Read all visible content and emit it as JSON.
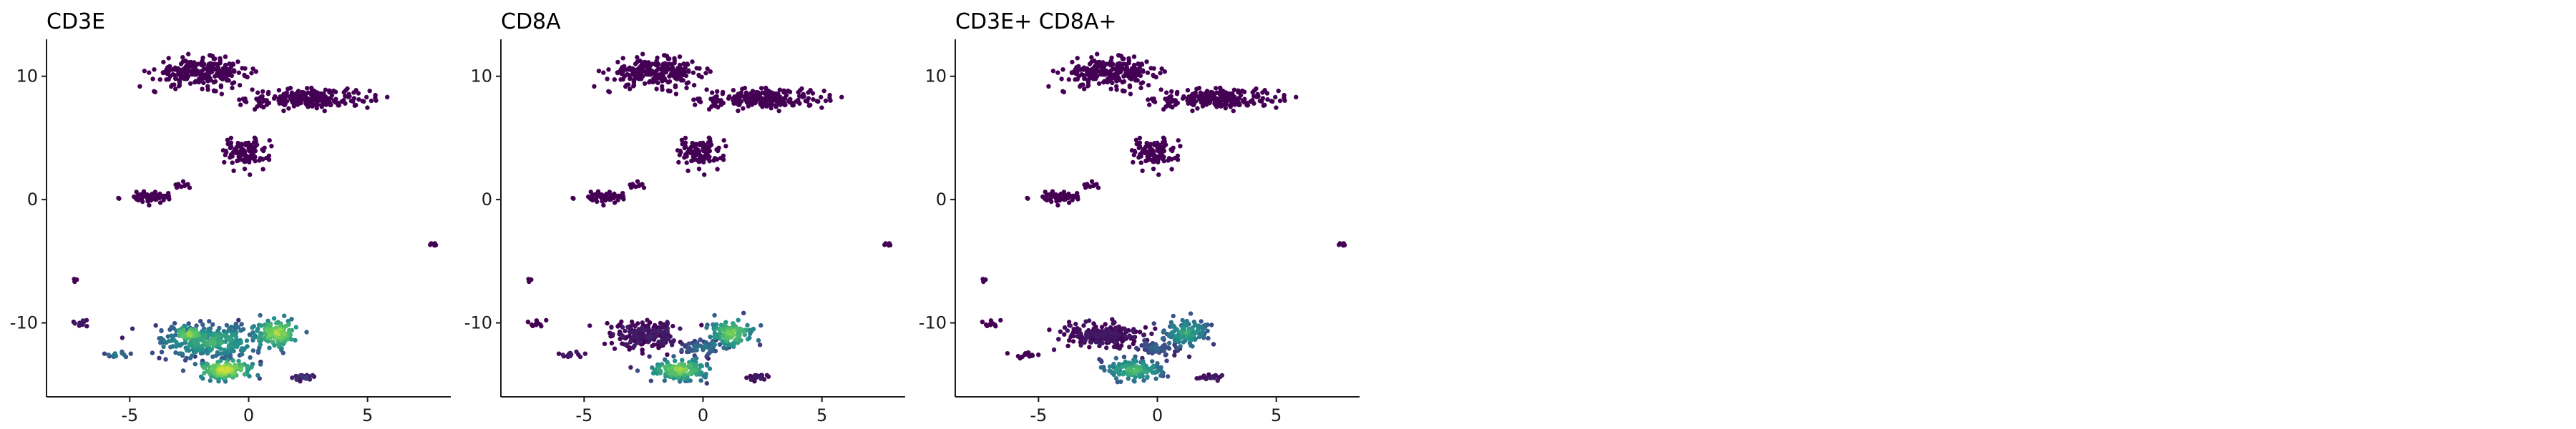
{
  "chart_data": [
    {
      "type": "scatter",
      "title": "CD3E",
      "xlabel": "",
      "ylabel": "",
      "xlim": [
        -8.5,
        8.5
      ],
      "ylim": [
        -16,
        13
      ],
      "xticks": [
        -5,
        0,
        5
      ],
      "yticks": [
        -10,
        0,
        10
      ],
      "grid": false,
      "color_scale": "viridis",
      "clusters": [
        {
          "x": -2.0,
          "y": 10.3,
          "rx": 1.8,
          "ry": 1.0,
          "n": 260,
          "expr": 0.0
        },
        {
          "x": 2.6,
          "y": 8.2,
          "rx": 2.3,
          "ry": 0.7,
          "n": 220,
          "expr": 0.0
        },
        {
          "x": -0.2,
          "y": 3.8,
          "rx": 0.9,
          "ry": 1.1,
          "n": 110,
          "expr": 0.0
        },
        {
          "x": -4.2,
          "y": 0.2,
          "rx": 0.9,
          "ry": 0.4,
          "n": 60,
          "expr": 0.0
        },
        {
          "x": -2.8,
          "y": 1.2,
          "rx": 0.4,
          "ry": 0.3,
          "n": 12,
          "expr": 0.0
        },
        {
          "x": 7.8,
          "y": -3.6,
          "rx": 0.15,
          "ry": 0.2,
          "n": 6,
          "expr": 0.0
        },
        {
          "x": -7.3,
          "y": -6.5,
          "rx": 0.1,
          "ry": 0.2,
          "n": 4,
          "expr": 0.0
        },
        {
          "x": -6.9,
          "y": -10.0,
          "rx": 0.4,
          "ry": 0.3,
          "n": 10,
          "expr": 0.1
        },
        {
          "x": -5.5,
          "y": -12.6,
          "rx": 0.5,
          "ry": 0.25,
          "n": 14,
          "expr": 0.45
        },
        {
          "x": 2.3,
          "y": -14.4,
          "rx": 0.5,
          "ry": 0.3,
          "n": 22,
          "expr": 0.15
        },
        {
          "x": -1.6,
          "y": -11.5,
          "rx": 2.0,
          "ry": 1.2,
          "n": 300,
          "expr": 0.65
        },
        {
          "x": -1.0,
          "y": -13.8,
          "rx": 1.1,
          "ry": 0.8,
          "n": 140,
          "expr": 0.95
        },
        {
          "x": 1.2,
          "y": -10.8,
          "rx": 0.9,
          "ry": 1.1,
          "n": 120,
          "expr": 0.9
        },
        {
          "x": -2.5,
          "y": -10.9,
          "rx": 0.7,
          "ry": 0.6,
          "n": 60,
          "expr": 0.85
        }
      ]
    },
    {
      "type": "scatter",
      "title": "CD8A",
      "xlabel": "",
      "ylabel": "",
      "xlim": [
        -8.5,
        8.5
      ],
      "ylim": [
        -16,
        13
      ],
      "xticks": [
        -5,
        0,
        5
      ],
      "yticks": [
        -10,
        0,
        10
      ],
      "grid": false,
      "color_scale": "viridis",
      "clusters": [
        {
          "x": -2.0,
          "y": 10.3,
          "rx": 1.8,
          "ry": 1.0,
          "n": 260,
          "expr": 0.0
        },
        {
          "x": 2.6,
          "y": 8.2,
          "rx": 2.3,
          "ry": 0.7,
          "n": 220,
          "expr": 0.0
        },
        {
          "x": -0.2,
          "y": 3.8,
          "rx": 0.9,
          "ry": 1.1,
          "n": 110,
          "expr": 0.0
        },
        {
          "x": -4.2,
          "y": 0.2,
          "rx": 0.9,
          "ry": 0.4,
          "n": 60,
          "expr": 0.0
        },
        {
          "x": -2.8,
          "y": 1.2,
          "rx": 0.4,
          "ry": 0.3,
          "n": 12,
          "expr": 0.0
        },
        {
          "x": 7.8,
          "y": -3.6,
          "rx": 0.15,
          "ry": 0.2,
          "n": 6,
          "expr": 0.0
        },
        {
          "x": -7.3,
          "y": -6.5,
          "rx": 0.1,
          "ry": 0.2,
          "n": 4,
          "expr": 0.0
        },
        {
          "x": -6.9,
          "y": -10.0,
          "rx": 0.4,
          "ry": 0.3,
          "n": 10,
          "expr": 0.0
        },
        {
          "x": -5.5,
          "y": -12.6,
          "rx": 0.5,
          "ry": 0.25,
          "n": 14,
          "expr": 0.05
        },
        {
          "x": 2.3,
          "y": -14.4,
          "rx": 0.5,
          "ry": 0.3,
          "n": 22,
          "expr": 0.05
        },
        {
          "x": -2.3,
          "y": -11.0,
          "rx": 1.5,
          "ry": 0.9,
          "n": 220,
          "expr": 0.05
        },
        {
          "x": -1.0,
          "y": -13.8,
          "rx": 1.1,
          "ry": 0.8,
          "n": 140,
          "expr": 0.85
        },
        {
          "x": 1.2,
          "y": -10.8,
          "rx": 0.9,
          "ry": 1.1,
          "n": 120,
          "expr": 0.8
        },
        {
          "x": 0.0,
          "y": -12.0,
          "rx": 0.8,
          "ry": 0.6,
          "n": 60,
          "expr": 0.4
        }
      ]
    },
    {
      "type": "scatter",
      "title": "CD3E+ CD8A+",
      "xlabel": "",
      "ylabel": "",
      "xlim": [
        -8.5,
        8.5
      ],
      "ylim": [
        -16,
        13
      ],
      "xticks": [
        -5,
        0,
        5
      ],
      "yticks": [
        -10,
        0,
        10
      ],
      "grid": false,
      "color_scale": "viridis",
      "clusters": [
        {
          "x": -2.0,
          "y": 10.3,
          "rx": 1.8,
          "ry": 1.0,
          "n": 260,
          "expr": 0.0
        },
        {
          "x": 2.6,
          "y": 8.2,
          "rx": 2.3,
          "ry": 0.7,
          "n": 220,
          "expr": 0.0
        },
        {
          "x": -0.2,
          "y": 3.8,
          "rx": 0.9,
          "ry": 1.1,
          "n": 110,
          "expr": 0.0
        },
        {
          "x": -4.2,
          "y": 0.2,
          "rx": 0.9,
          "ry": 0.4,
          "n": 60,
          "expr": 0.0
        },
        {
          "x": -2.8,
          "y": 1.2,
          "rx": 0.4,
          "ry": 0.3,
          "n": 12,
          "expr": 0.0
        },
        {
          "x": 7.8,
          "y": -3.6,
          "rx": 0.15,
          "ry": 0.2,
          "n": 6,
          "expr": 0.0
        },
        {
          "x": -7.3,
          "y": -6.5,
          "rx": 0.1,
          "ry": 0.2,
          "n": 4,
          "expr": 0.0
        },
        {
          "x": -6.9,
          "y": -10.0,
          "rx": 0.4,
          "ry": 0.3,
          "n": 10,
          "expr": 0.0
        },
        {
          "x": -5.5,
          "y": -12.6,
          "rx": 0.5,
          "ry": 0.25,
          "n": 14,
          "expr": 0.0
        },
        {
          "x": 2.3,
          "y": -14.4,
          "rx": 0.5,
          "ry": 0.3,
          "n": 22,
          "expr": 0.05
        },
        {
          "x": -2.3,
          "y": -11.0,
          "rx": 1.5,
          "ry": 0.9,
          "n": 220,
          "expr": 0.03
        },
        {
          "x": -1.0,
          "y": -13.8,
          "rx": 1.1,
          "ry": 0.8,
          "n": 140,
          "expr": 0.7
        },
        {
          "x": 1.2,
          "y": -10.8,
          "rx": 0.9,
          "ry": 1.1,
          "n": 120,
          "expr": 0.6
        },
        {
          "x": 0.0,
          "y": -12.0,
          "rx": 0.8,
          "ry": 0.6,
          "n": 60,
          "expr": 0.3
        }
      ]
    }
  ],
  "colors": {
    "viridis": [
      "#440154",
      "#3b528b",
      "#21918c",
      "#5ec962",
      "#fde725"
    ],
    "axis": "#1a1a1a",
    "background": "#ffffff"
  }
}
